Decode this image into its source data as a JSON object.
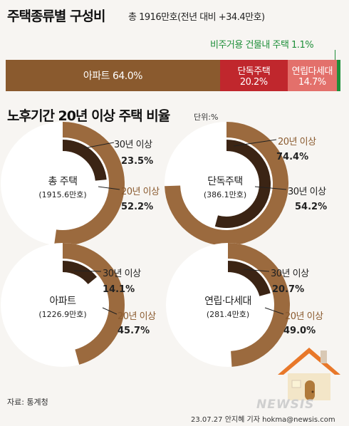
{
  "header": {
    "title": "주택종류별 구성비",
    "total_note": "총 1916만호(전년 대비 +34.4만호)"
  },
  "bar_section": {
    "nonresidential_label": "비주거용 건물내 주택 1.1%",
    "apartment_label": "아파트 64.0%",
    "detached_label": "단독주택",
    "detached_value": "20.2%",
    "multi_label": "연립다세대",
    "multi_value": "14.7%"
  },
  "section2": {
    "title": "노후기간 20년 이상 주택 비율",
    "unit": "단위:%"
  },
  "donuts": [
    {
      "name": "총 주택",
      "total": "(1915.6만호)",
      "outer_label": "20년 이상",
      "outer_value": "52.2%",
      "inner_label": "30년 이상",
      "inner_value": "23.5%"
    },
    {
      "name": "단독주택",
      "total": "(386.1만호)",
      "outer_label": "20년 이상",
      "outer_value": "74.4%",
      "inner_label": "30년 이상",
      "inner_value": "54.2%"
    },
    {
      "name": "아파트",
      "total": "(1226.9만호)",
      "outer_label": "20년 이상",
      "outer_value": "45.7%",
      "inner_label": "30년 이상",
      "inner_value": "14.1%"
    },
    {
      "name": "연립·다세대",
      "total": "(281.4만호)",
      "outer_label": "20년 이상",
      "outer_value": "49.0%",
      "inner_label": "30년 이상",
      "inner_value": "20.7%"
    }
  ],
  "footer": {
    "source": "자료: 통계청",
    "credit": "23.07.27 안지혜 기자 hokma@newsis.com",
    "logo_text": "NEWSIS"
  },
  "colors": {
    "apartment": "#8a5a2e",
    "detached": "#c0272d",
    "multi": "#e3706b",
    "nonresidential": "#1f8f3a",
    "outer_ring": "#9b6a3e",
    "inner_ring": "#3b2414"
  },
  "chart_data": [
    {
      "type": "bar",
      "title": "주택종류별 구성비",
      "categories": [
        "아파트",
        "단독주택",
        "연립다세대",
        "비주거용 건물내 주택"
      ],
      "values": [
        64.0,
        20.2,
        14.7,
        1.1
      ]
    },
    {
      "type": "pie",
      "title": "노후기간 20년 이상 주택 비율",
      "categories": [
        "총 주택",
        "단독주택",
        "아파트",
        "연립·다세대"
      ],
      "series": [
        {
          "name": "20년 이상",
          "values": [
            52.2,
            74.4,
            45.7,
            49.0
          ]
        },
        {
          "name": "30년 이상",
          "values": [
            23.5,
            54.2,
            14.1,
            20.7
          ]
        }
      ]
    }
  ]
}
